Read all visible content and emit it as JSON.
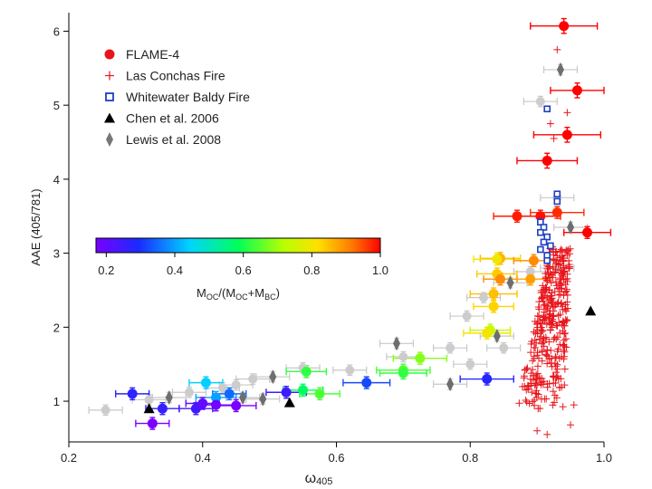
{
  "chart_data": {
    "type": "scatter",
    "xlabel": "ω",
    "xlabel_sub": "405",
    "ylabel": "AAE (405/781)",
    "xlim": [
      0.2,
      1.0
    ],
    "ylim": [
      0.45,
      6.25
    ],
    "x_ticks": [
      0.2,
      0.4,
      0.6,
      0.8,
      1.0
    ],
    "x_tick_labels": [
      "0.2",
      "0.4",
      "0.6",
      "0.8",
      "1.0"
    ],
    "y_ticks": [
      1,
      2,
      3,
      4,
      5,
      6
    ],
    "y_tick_labels": [
      "1",
      "2",
      "3",
      "4",
      "5",
      "6"
    ],
    "grid": false,
    "legend_placement": "top-left",
    "legend": [
      {
        "label": "FLAME-4",
        "marker": "circle",
        "color": "#e8141b"
      },
      {
        "label": "Las Conchas Fire",
        "marker": "plus",
        "color": "#e8141b"
      },
      {
        "label": "Whitewater Baldy Fire",
        "marker": "open-square",
        "color": "#1d3fc4"
      },
      {
        "label": "Chen et al. 2006",
        "marker": "triangle",
        "color": "#000000"
      },
      {
        "label": "Lewis et al. 2008",
        "marker": "diamond",
        "color": "#777777"
      }
    ],
    "colorbar": {
      "label_main": "M",
      "label_sub1": "OC",
      "label_mid": "/(M",
      "label_sub2": "OC",
      "label_plus": "+M",
      "label_sub3": "BC",
      "label_end": ")",
      "range": [
        0.17,
        1.0
      ],
      "ticks": [
        0.2,
        0.4,
        0.6,
        0.8,
        1.0
      ],
      "tick_labels": [
        "0.2",
        "0.4",
        "0.6",
        "0.8",
        "1.0"
      ],
      "colormap": "rainbow"
    },
    "series": [
      {
        "name": "FLAME-4",
        "marker": "circle",
        "points": [
          {
            "x": 0.94,
            "y": 6.07,
            "xerr": 0.05,
            "yerr": 0.1,
            "c": 1.0
          },
          {
            "x": 0.96,
            "y": 5.2,
            "xerr": 0.04,
            "yerr": 0.1,
            "c": 1.0
          },
          {
            "x": 0.945,
            "y": 4.6,
            "xerr": 0.05,
            "yerr": 0.1,
            "c": 1.0
          },
          {
            "x": 0.915,
            "y": 4.25,
            "xerr": 0.045,
            "yerr": 0.1,
            "c": 1.0
          },
          {
            "x": 0.87,
            "y": 3.5,
            "xerr": 0.035,
            "yerr": 0.08,
            "c": 0.98
          },
          {
            "x": 0.905,
            "y": 3.5,
            "xerr": 0.03,
            "yerr": 0.08,
            "c": 0.99
          },
          {
            "x": 0.93,
            "y": 3.55,
            "xerr": 0.04,
            "yerr": 0.08,
            "c": 0.97
          },
          {
            "x": 0.975,
            "y": 3.28,
            "xerr": 0.035,
            "yerr": 0.08,
            "c": 1.0
          },
          {
            "x": 0.845,
            "y": 2.93,
            "xerr": 0.03,
            "yerr": 0.08,
            "c": 0.86
          },
          {
            "x": 0.84,
            "y": 2.92,
            "xerr": 0.035,
            "yerr": 0.08,
            "c": 0.8
          },
          {
            "x": 0.895,
            "y": 2.9,
            "xerr": 0.03,
            "yerr": 0.08,
            "c": 0.9
          },
          {
            "x": 0.84,
            "y": 2.72,
            "xerr": 0.03,
            "yerr": 0.08,
            "c": 0.84
          },
          {
            "x": 0.845,
            "y": 2.65,
            "xerr": 0.025,
            "yerr": 0.08,
            "c": 0.9
          },
          {
            "x": 0.89,
            "y": 2.65,
            "xerr": 0.03,
            "yerr": 0.08,
            "c": 0.88
          },
          {
            "x": 0.835,
            "y": 2.45,
            "xerr": 0.035,
            "yerr": 0.08,
            "c": 0.85
          },
          {
            "x": 0.835,
            "y": 2.28,
            "xerr": 0.03,
            "yerr": 0.08,
            "c": 0.83
          },
          {
            "x": 0.83,
            "y": 1.96,
            "xerr": 0.03,
            "yerr": 0.08,
            "c": 0.74
          },
          {
            "x": 0.825,
            "y": 1.92,
            "xerr": 0.035,
            "yerr": 0.08,
            "c": 0.8
          },
          {
            "x": 0.725,
            "y": 1.58,
            "xerr": 0.04,
            "yerr": 0.08,
            "c": 0.68
          },
          {
            "x": 0.7,
            "y": 1.42,
            "xerr": 0.04,
            "yerr": 0.08,
            "c": 0.64
          },
          {
            "x": 0.7,
            "y": 1.38,
            "xerr": 0.035,
            "yerr": 0.08,
            "c": 0.62
          },
          {
            "x": 0.555,
            "y": 1.4,
            "xerr": 0.03,
            "yerr": 0.08,
            "c": 0.62
          },
          {
            "x": 0.575,
            "y": 1.1,
            "xerr": 0.03,
            "yerr": 0.08,
            "c": 0.64
          },
          {
            "x": 0.55,
            "y": 1.15,
            "xerr": 0.03,
            "yerr": 0.08,
            "c": 0.58
          },
          {
            "x": 0.525,
            "y": 1.12,
            "xerr": 0.03,
            "yerr": 0.08,
            "c": 0.25
          },
          {
            "x": 0.645,
            "y": 1.25,
            "xerr": 0.035,
            "yerr": 0.08,
            "c": 0.32
          },
          {
            "x": 0.825,
            "y": 1.3,
            "xerr": 0.04,
            "yerr": 0.08,
            "c": 0.28
          },
          {
            "x": 0.405,
            "y": 1.25,
            "xerr": 0.025,
            "yerr": 0.08,
            "c": 0.44
          },
          {
            "x": 0.42,
            "y": 1.05,
            "xerr": 0.03,
            "yerr": 0.08,
            "c": 0.4
          },
          {
            "x": 0.44,
            "y": 1.1,
            "xerr": 0.025,
            "yerr": 0.08,
            "c": 0.35
          },
          {
            "x": 0.295,
            "y": 1.1,
            "xerr": 0.025,
            "yerr": 0.08,
            "c": 0.27
          },
          {
            "x": 0.34,
            "y": 0.9,
            "xerr": 0.025,
            "yerr": 0.08,
            "c": 0.26
          },
          {
            "x": 0.39,
            "y": 0.9,
            "xerr": 0.025,
            "yerr": 0.08,
            "c": 0.24
          },
          {
            "x": 0.4,
            "y": 0.97,
            "xerr": 0.025,
            "yerr": 0.08,
            "c": 0.2
          },
          {
            "x": 0.42,
            "y": 0.95,
            "xerr": 0.03,
            "yerr": 0.08,
            "c": 0.18
          },
          {
            "x": 0.45,
            "y": 0.94,
            "xerr": 0.03,
            "yerr": 0.08,
            "c": 0.17
          },
          {
            "x": 0.325,
            "y": 0.7,
            "xerr": 0.025,
            "yerr": 0.08,
            "c": 0.15
          }
        ]
      },
      {
        "name": "Lewis et al. 2008",
        "marker": "diamond",
        "points": [
          {
            "x": 0.935,
            "y": 5.48
          },
          {
            "x": 0.905,
            "y": 5.05
          },
          {
            "x": 0.93,
            "y": 3.75
          },
          {
            "x": 0.95,
            "y": 3.35
          },
          {
            "x": 0.93,
            "y": 2.8
          },
          {
            "x": 0.89,
            "y": 2.75
          },
          {
            "x": 0.86,
            "y": 2.6
          },
          {
            "x": 0.82,
            "y": 2.4
          },
          {
            "x": 0.795,
            "y": 2.15
          },
          {
            "x": 0.84,
            "y": 1.88
          },
          {
            "x": 0.85,
            "y": 1.72
          },
          {
            "x": 0.77,
            "y": 1.72
          },
          {
            "x": 0.69,
            "y": 1.78
          },
          {
            "x": 0.7,
            "y": 1.6
          },
          {
            "x": 0.8,
            "y": 1.5
          },
          {
            "x": 0.77,
            "y": 1.23
          },
          {
            "x": 0.62,
            "y": 1.42
          },
          {
            "x": 0.55,
            "y": 1.45
          },
          {
            "x": 0.505,
            "y": 1.33
          },
          {
            "x": 0.475,
            "y": 1.3
          },
          {
            "x": 0.45,
            "y": 1.22
          },
          {
            "x": 0.46,
            "y": 1.05
          },
          {
            "x": 0.43,
            "y": 1.18
          },
          {
            "x": 0.38,
            "y": 1.12
          },
          {
            "x": 0.35,
            "y": 1.05
          },
          {
            "x": 0.32,
            "y": 1.02
          },
          {
            "x": 0.255,
            "y": 0.88
          },
          {
            "x": 0.49,
            "y": 1.03
          }
        ]
      },
      {
        "name": "Whitewater Baldy Fire",
        "marker": "open-square",
        "points": [
          {
            "x": 0.915,
            "y": 4.95
          },
          {
            "x": 0.93,
            "y": 3.8
          },
          {
            "x": 0.93,
            "y": 3.7
          },
          {
            "x": 0.905,
            "y": 3.42
          },
          {
            "x": 0.91,
            "y": 3.35
          },
          {
            "x": 0.905,
            "y": 3.28
          },
          {
            "x": 0.915,
            "y": 3.22
          },
          {
            "x": 0.91,
            "y": 3.15
          },
          {
            "x": 0.92,
            "y": 3.1
          },
          {
            "x": 0.905,
            "y": 3.05
          },
          {
            "x": 0.915,
            "y": 2.97
          },
          {
            "x": 0.915,
            "y": 2.9
          }
        ]
      },
      {
        "name": "Chen et al. 2006",
        "marker": "triangle",
        "points": [
          {
            "x": 0.98,
            "y": 2.22
          },
          {
            "x": 0.53,
            "y": 0.98
          },
          {
            "x": 0.32,
            "y": 0.9
          }
        ]
      },
      {
        "name": "Las Conchas Fire",
        "marker": "plus",
        "points": [
          {
            "x": 0.93,
            "y": 5.75
          },
          {
            "x": 0.945,
            "y": 4.9
          },
          {
            "x": 0.92,
            "y": 4.75
          },
          {
            "x": 0.925,
            "y": 4.55
          },
          {
            "x": 0.9,
            "y": 0.6
          },
          {
            "x": 0.915,
            "y": 0.55
          },
          {
            "x": 0.95,
            "y": 0.68
          },
          {
            "x": 0.955,
            "y": 0.95
          }
        ],
        "cluster": {
          "x_min": 0.86,
          "x_max": 0.975,
          "y_min": 0.9,
          "y_max": 3.1,
          "count": 360,
          "seed": 7
        }
      }
    ]
  }
}
